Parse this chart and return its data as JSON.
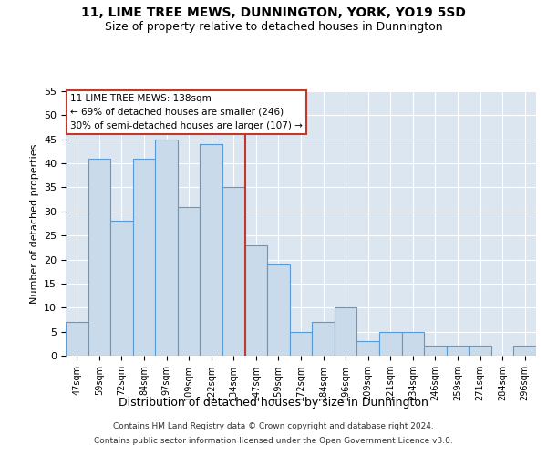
{
  "title": "11, LIME TREE MEWS, DUNNINGTON, YORK, YO19 5SD",
  "subtitle": "Size of property relative to detached houses in Dunnington",
  "xlabel": "Distribution of detached houses by size in Dunnington",
  "ylabel": "Number of detached properties",
  "bar_labels": [
    "47sqm",
    "59sqm",
    "72sqm",
    "84sqm",
    "97sqm",
    "109sqm",
    "122sqm",
    "134sqm",
    "147sqm",
    "159sqm",
    "172sqm",
    "184sqm",
    "196sqm",
    "209sqm",
    "221sqm",
    "234sqm",
    "246sqm",
    "259sqm",
    "271sqm",
    "284sqm",
    "296sqm"
  ],
  "bar_values": [
    7,
    41,
    28,
    41,
    45,
    31,
    44,
    35,
    23,
    19,
    5,
    7,
    10,
    3,
    5,
    5,
    2,
    2,
    2,
    0,
    2
  ],
  "bar_color": "#c9daea",
  "bar_edge_color": "#5b9bd5",
  "vline_index": 7,
  "vline_color": "#c0392b",
  "annotation_text": "11 LIME TREE MEWS: 138sqm\n← 69% of detached houses are smaller (246)\n30% of semi-detached houses are larger (107) →",
  "annotation_box_color": "#c0392b",
  "annotation_text_color": "#000000",
  "annotation_bg": "#ffffff",
  "ylim": [
    0,
    55
  ],
  "yticks": [
    0,
    5,
    10,
    15,
    20,
    25,
    30,
    35,
    40,
    45,
    50,
    55
  ],
  "grid_color": "#ffffff",
  "bg_color": "#dce6f1",
  "footnote1": "Contains HM Land Registry data © Crown copyright and database right 2024.",
  "footnote2": "Contains public sector information licensed under the Open Government Licence v3.0.",
  "title_fontsize": 10,
  "subtitle_fontsize": 9
}
